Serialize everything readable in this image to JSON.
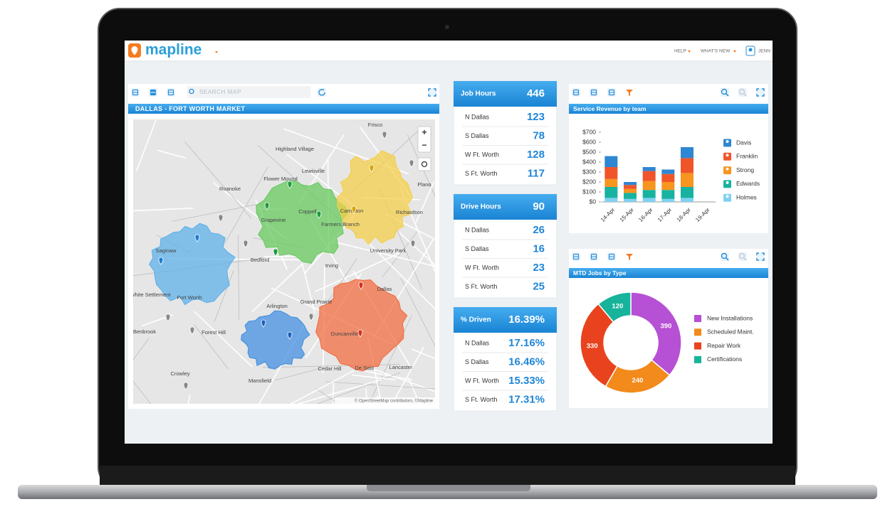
{
  "header": {
    "logo": "mapline",
    "nav": [
      "HELP",
      "WHAT'S NEW"
    ],
    "user": "JENN"
  },
  "map": {
    "search_placeholder": "SEARCH MAP",
    "title": "DALLAS - FORT WORTH MARKET",
    "zoom_in": "+",
    "zoom_out": "−",
    "places": [
      "Frisco",
      "Highland Village",
      "Lewisville",
      "Flower Mound",
      "Roanoke",
      "Coppell",
      "Carrollton",
      "Richardson",
      "Plano",
      "Grapevine",
      "Farmers Branch",
      "University Park",
      "Irving",
      "Bedford",
      "Saginaw",
      "Fort Worth",
      "Arlington",
      "Grand Prairie",
      "Dallas",
      "Forest Hill",
      "Duncanville",
      "Benbrook",
      "Crowley",
      "Mansfield",
      "Cedar Hill",
      "De Soto",
      "Lancaster",
      "White Settlement"
    ],
    "attribution": "© OpenStreetMap contributors, ©Mapline"
  },
  "kpis": [
    {
      "title": "Job Hours",
      "total": "446",
      "rows": [
        {
          "label": "N Dallas",
          "value": "123"
        },
        {
          "label": "S Dallas",
          "value": "78"
        },
        {
          "label": "W Ft. Worth",
          "value": "128"
        },
        {
          "label": "S Ft. Worth",
          "value": "117"
        }
      ]
    },
    {
      "title": "Drive Hours",
      "total": "90",
      "rows": [
        {
          "label": "N Dallas",
          "value": "26"
        },
        {
          "label": "S Dallas",
          "value": "16"
        },
        {
          "label": "W Ft. Worth",
          "value": "23"
        },
        {
          "label": "S Ft. Worth",
          "value": "25"
        }
      ]
    },
    {
      "title": "% Driven",
      "total": "16.39%",
      "rows": [
        {
          "label": "N Dallas",
          "value": "17.16%"
        },
        {
          "label": "S Dallas",
          "value": "16.46%"
        },
        {
          "label": "W Ft. Worth",
          "value": "15.33%"
        },
        {
          "label": "S Ft. Worth",
          "value": "17.31%"
        }
      ]
    }
  ],
  "revenue_chart": {
    "type": "bar",
    "stacked": true,
    "title": "Service Revenue by team",
    "categories": [
      "14-Apr",
      "15-Apr",
      "16-Apr",
      "17-Apr",
      "18-Apr",
      "19-Apr"
    ],
    "series": [
      {
        "name": "Davis",
        "color": "#2f86d2",
        "values": [
          110,
          30,
          40,
          45,
          110,
          null
        ]
      },
      {
        "name": "Franklin",
        "color": "#f0552a",
        "values": [
          120,
          40,
          100,
          80,
          150,
          null
        ]
      },
      {
        "name": "Strong",
        "color": "#f7951f",
        "values": [
          80,
          40,
          90,
          80,
          140,
          null
        ]
      },
      {
        "name": "Edwards",
        "color": "#17b3a0",
        "values": [
          110,
          60,
          80,
          90,
          110,
          null
        ]
      },
      {
        "name": "Holmes",
        "color": "#7fd1f2",
        "values": [
          40,
          30,
          40,
          30,
          40,
          null
        ]
      }
    ],
    "ylim": [
      0,
      700
    ],
    "yticks": [
      {
        "value": 0,
        "label": "$0"
      },
      {
        "value": 100,
        "label": "$100"
      },
      {
        "value": 200,
        "label": "$200"
      },
      {
        "value": 300,
        "label": "$300"
      },
      {
        "value": 400,
        "label": "$400"
      },
      {
        "value": 500,
        "label": "$500"
      },
      {
        "value": 600,
        "label": "$600"
      },
      {
        "value": 700,
        "label": "$700"
      }
    ]
  },
  "jobs_chart": {
    "type": "donut",
    "title": "MTD Jobs by Type",
    "categories": [
      "New Installations",
      "Scheduled Maint.",
      "Repair Work",
      "Certifications"
    ],
    "values": [
      390,
      240,
      330,
      120
    ],
    "colors": [
      "#b650d4",
      "#f28a1c",
      "#e8431e",
      "#17b39b"
    ]
  }
}
